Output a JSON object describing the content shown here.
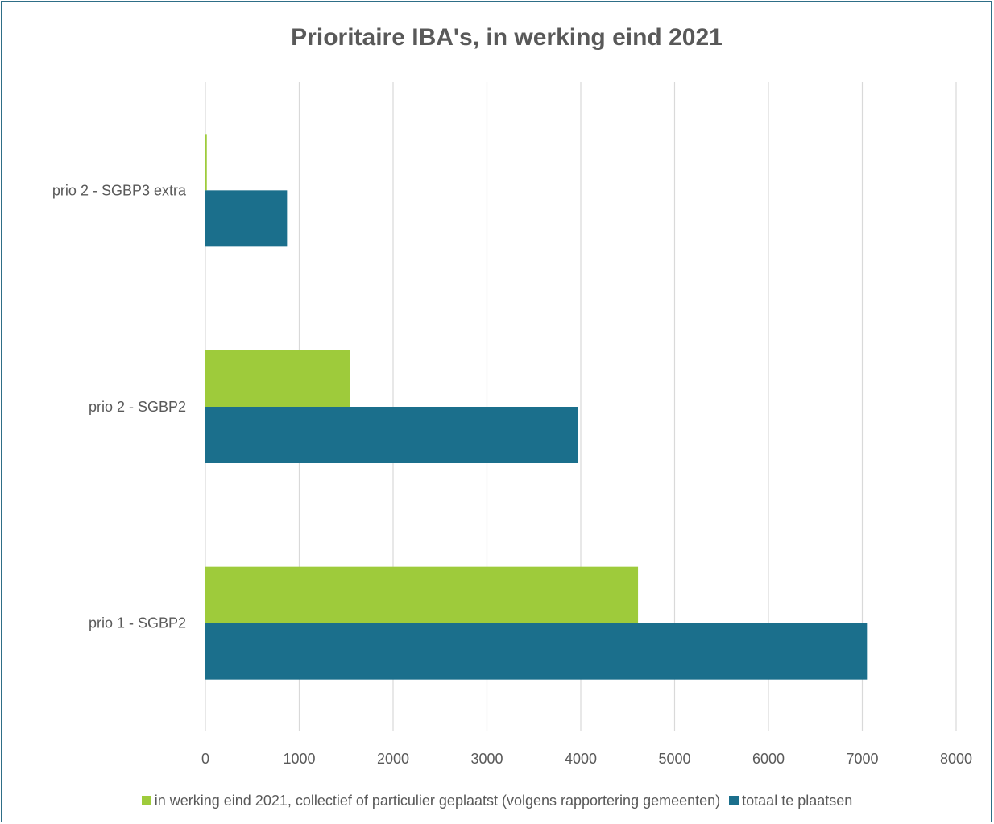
{
  "chart_data": {
    "type": "bar",
    "orientation": "horizontal",
    "title": "Prioritaire IBA's, in werking eind 2021",
    "categories": [
      "prio 2 - SGBP3 extra",
      "prio 2 - SGBP2",
      "prio 1 - SGBP2"
    ],
    "series": [
      {
        "name": "in werking eind 2021, collectief of particulier geplaatst (volgens rapportering gemeenten)",
        "color": "#9ecb3b",
        "values": [
          15,
          1540,
          4610
        ]
      },
      {
        "name": "totaal te plaatsen",
        "color": "#1b6f8c",
        "values": [
          870,
          3970,
          7050
        ]
      }
    ],
    "xlim": [
      0,
      8000
    ],
    "xticks": [
      "0",
      "1000",
      "2000",
      "3000",
      "4000",
      "5000",
      "6000",
      "7000",
      "8000"
    ],
    "grid": "vertical",
    "legend_position": "bottom"
  }
}
